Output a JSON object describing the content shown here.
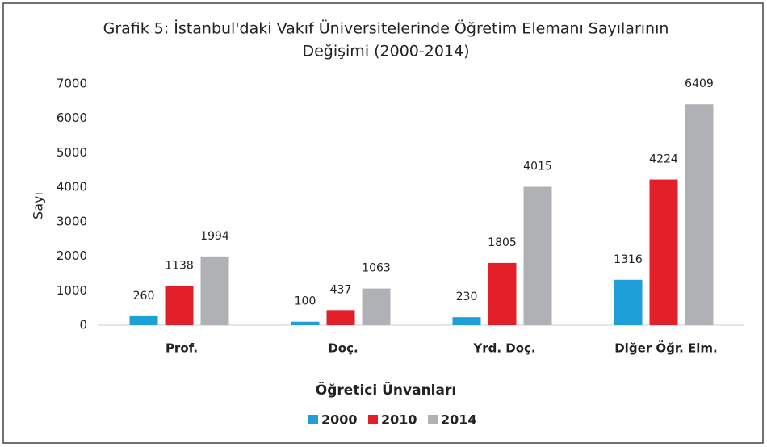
{
  "chart_data": {
    "type": "bar",
    "title": [
      "Grafik 5: İstanbul'daki Vakıf Üniversitelerinde Öğretim Elemanı Sayılarının",
      "Değişimi (2000-2014)"
    ],
    "x_label": "Öğretici Ünvanları",
    "y_label": "Sayı",
    "categories": [
      "Prof.",
      "Doç.",
      "Yrd. Doç.",
      "Diğer Öğr. Elm."
    ],
    "series": [
      {
        "name": "2000",
        "color": "#1f9fd8",
        "values": [
          260,
          100,
          230,
          1316
        ]
      },
      {
        "name": "2010",
        "color": "#e3202a",
        "values": [
          1138,
          437,
          1805,
          4224
        ]
      },
      {
        "name": "2014",
        "color": "#b0b1b5",
        "values": [
          1994,
          1063,
          4015,
          6409
        ]
      }
    ],
    "ylim": [
      0,
      7000
    ],
    "yticks": [
      0,
      1000,
      2000,
      3000,
      4000,
      5000,
      6000,
      7000
    ],
    "grid": false,
    "legend": "bottom"
  }
}
